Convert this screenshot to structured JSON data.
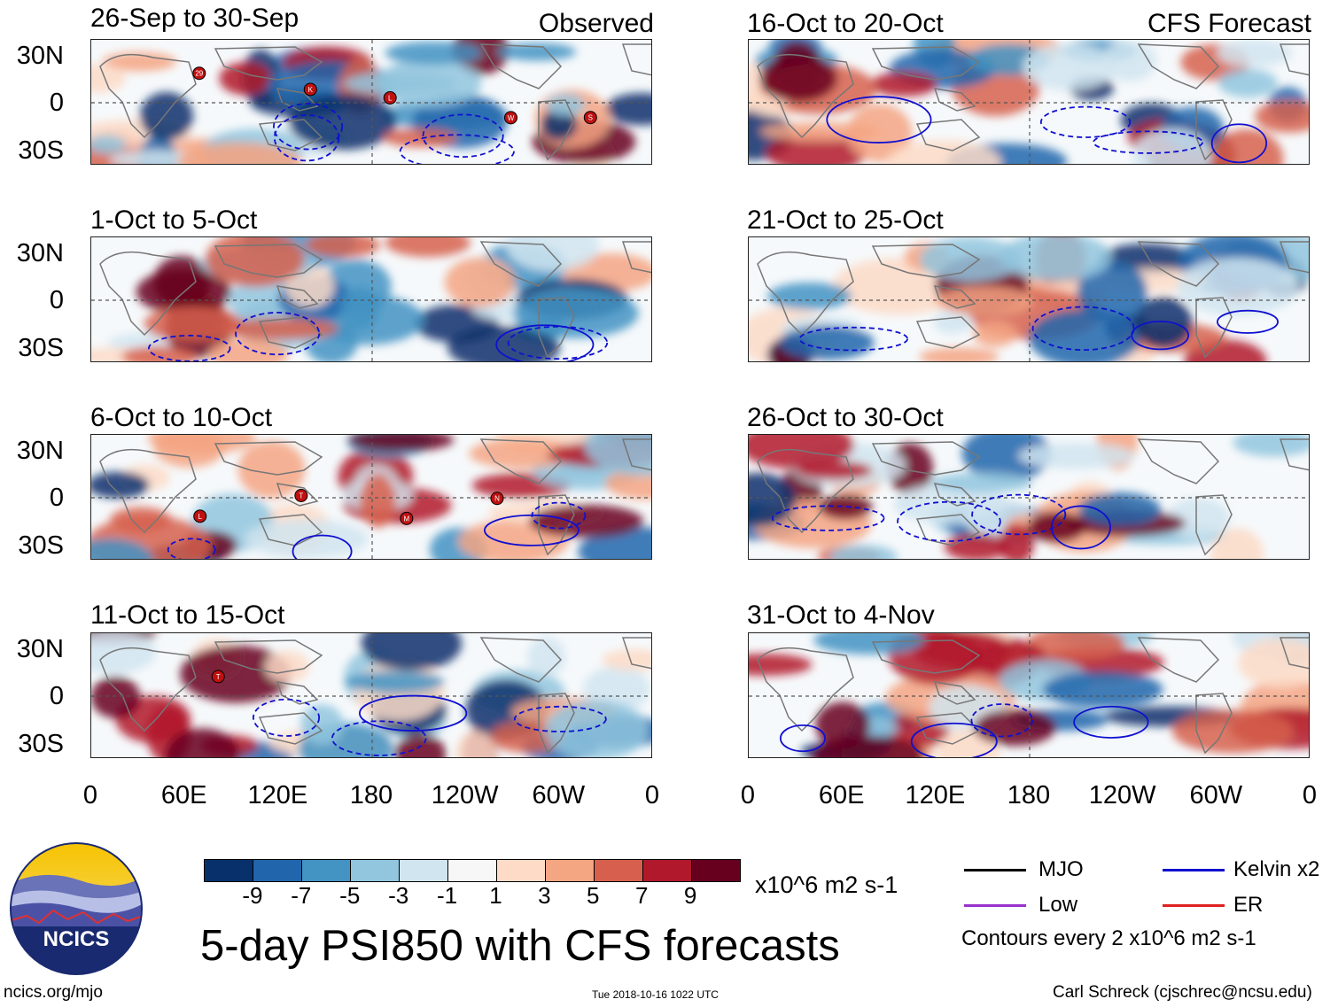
{
  "labels": {
    "observed": "Observed",
    "forecast": "CFS Forecast",
    "main_title": "5-day PSI850 with CFS forecasts",
    "units": "x10^6 m2 s-1",
    "contours_note": "Contours every 2 x10^6 m2 s-1",
    "org": "NCICS",
    "footer_left": "ncics.org/mjo",
    "footer_center": "Tue 2018-10-16 1022 UTC",
    "footer_right": "Carl Schreck (cjschrec@ncsu.edu)"
  },
  "panels": {
    "observed": [
      {
        "title": "26-Sep to 30-Sep",
        "storms": [
          "29",
          "K",
          "L",
          "W",
          "S"
        ]
      },
      {
        "title": "1-Oct to 5-Oct",
        "storms": []
      },
      {
        "title": "6-Oct to 10-Oct",
        "storms": [
          "L",
          "T",
          "M",
          "N"
        ]
      },
      {
        "title": "11-Oct to 15-Oct",
        "storms": [
          "T"
        ]
      }
    ],
    "forecast": [
      {
        "title": "16-Oct to 20-Oct"
      },
      {
        "title": "21-Oct to 25-Oct"
      },
      {
        "title": "26-Oct to 30-Oct"
      },
      {
        "title": "31-Oct to 4-Nov"
      }
    ]
  },
  "axes": {
    "lat_labels": [
      "30N",
      "0",
      "30S"
    ],
    "lon_labels": [
      "0",
      "60E",
      "120E",
      "180",
      "120W",
      "60W",
      "0"
    ]
  },
  "colorbar": {
    "ticks": [
      "-9",
      "-7",
      "-5",
      "-3",
      "-1",
      "1",
      "3",
      "5",
      "7",
      "9"
    ],
    "colors": [
      "#08306b",
      "#2166ac",
      "#4393c3",
      "#92c5de",
      "#d1e5f0",
      "#f7f7f7",
      "#fddbc7",
      "#f4a582",
      "#d6604d",
      "#b2182b",
      "#67001f"
    ]
  },
  "legend": {
    "items": [
      {
        "label": "MJO",
        "color": "#000000"
      },
      {
        "label": "Kelvin x2",
        "color": "#1010d0"
      },
      {
        "label": "Low",
        "color": "#9933cc"
      },
      {
        "label": "ER",
        "color": "#e02020"
      }
    ]
  }
}
